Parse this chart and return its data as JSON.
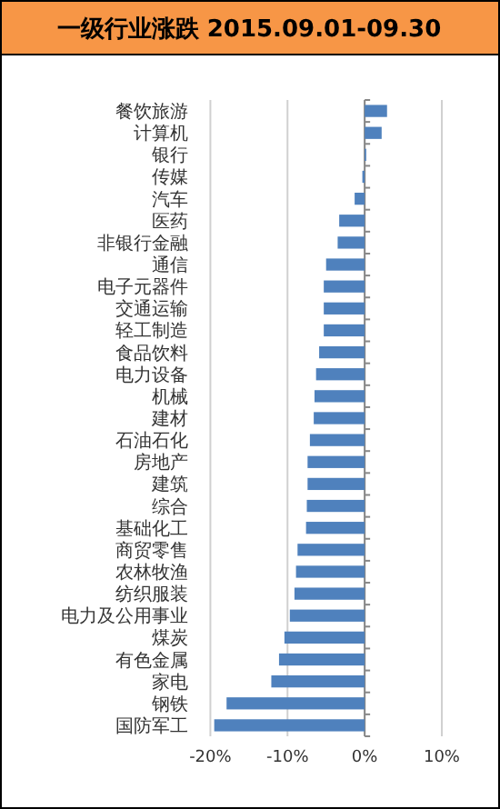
{
  "chart_data": {
    "type": "bar",
    "orientation": "horizontal",
    "title": "一级行业涨跌 2015.09.01-09.30",
    "categories": [
      "餐饮旅游",
      "计算机",
      "银行",
      "传媒",
      "汽车",
      "医药",
      "非银行金融",
      "通信",
      "电子元器件",
      "交通运输",
      "轻工制造",
      "食品饮料",
      "电力设备",
      "机械",
      "建材",
      "石油石化",
      "房地产",
      "建筑",
      "综合",
      "基础化工",
      "商贸零售",
      "农林牧渔",
      "纺织服装",
      "电力及公用事业",
      "煤炭",
      "有色金属",
      "家电",
      "钢铁",
      "国防军工"
    ],
    "values": [
      2.9,
      2.2,
      0.2,
      -0.3,
      -1.3,
      -3.3,
      -3.5,
      -5.0,
      -5.3,
      -5.3,
      -5.3,
      -5.9,
      -6.3,
      -6.5,
      -6.6,
      -7.1,
      -7.4,
      -7.4,
      -7.5,
      -7.6,
      -8.7,
      -8.9,
      -9.1,
      -9.7,
      -10.4,
      -11.1,
      -12.1,
      -17.9,
      -19.5
    ],
    "color": "#4f81bd",
    "xlim": [
      -20,
      10
    ],
    "xticks": [
      {
        "value": -20,
        "label": "-20%"
      },
      {
        "value": -10,
        "label": "-10%"
      },
      {
        "value": 0,
        "label": "0%"
      },
      {
        "value": 10,
        "label": "10%"
      }
    ],
    "grid": "x"
  }
}
